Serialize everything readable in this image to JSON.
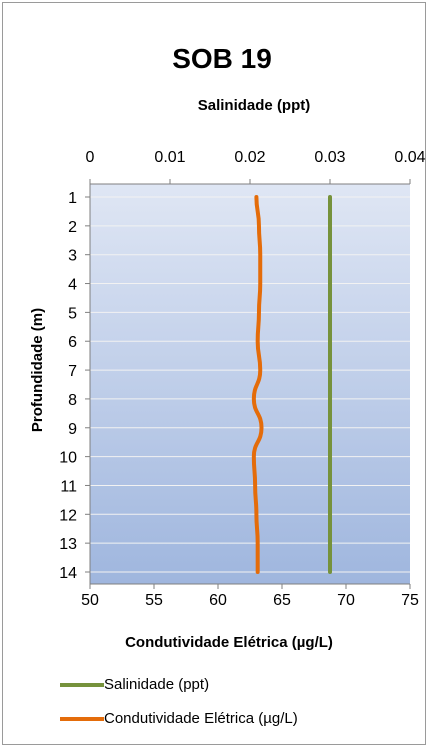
{
  "chart_data": {
    "type": "line",
    "title": "SOB 19",
    "top_axis": {
      "label": "Salinidade (ppt)",
      "range": [
        0,
        0.04
      ],
      "ticks": [
        "0",
        "0.01",
        "0.02",
        "0.03",
        "0.04"
      ]
    },
    "bottom_axis": {
      "label": "Condutividade Elétrica (µg/L)",
      "range": [
        50,
        75
      ],
      "ticks": [
        "50",
        "55",
        "60",
        "65",
        "70",
        "75"
      ]
    },
    "y_axis": {
      "label": "Profundidade (m)",
      "range": [
        1,
        14
      ],
      "inverted": true,
      "ticks": [
        "1",
        "2",
        "3",
        "4",
        "5",
        "6",
        "7",
        "8",
        "9",
        "10",
        "11",
        "12",
        "13",
        "14"
      ]
    },
    "depth": [
      1,
      2,
      3,
      4,
      5,
      6,
      7,
      8,
      9,
      10,
      11,
      12,
      13,
      14
    ],
    "series": [
      {
        "name": "Salinidade (ppt)",
        "axis": "top",
        "color": "#76923c",
        "values": [
          0.03,
          0.03,
          0.03,
          0.03,
          0.03,
          0.03,
          0.03,
          0.03,
          0.03,
          0.03,
          0.03,
          0.03,
          0.03,
          0.03
        ]
      },
      {
        "name": "Condutividade Elétrica (µg/L)",
        "axis": "bottom",
        "color": "#e46c0a",
        "values": [
          63.0,
          63.2,
          63.3,
          63.3,
          63.2,
          63.1,
          63.3,
          62.8,
          63.4,
          62.8,
          62.9,
          63.0,
          63.1,
          63.1
        ]
      }
    ],
    "grid": true,
    "legend_position": "bottom"
  }
}
